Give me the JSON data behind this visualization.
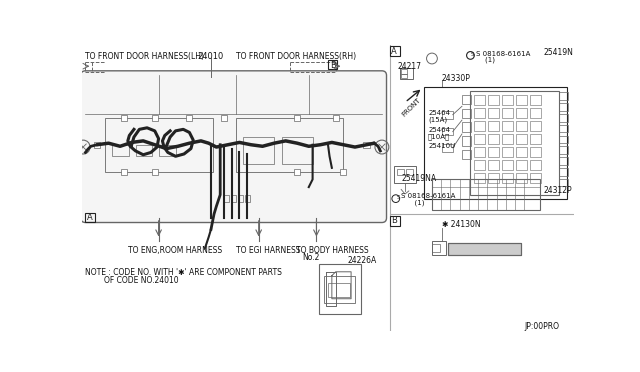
{
  "bg_color": "#ffffff",
  "lc": "#666666",
  "dc": "#222222",
  "fig_width": 6.4,
  "fig_height": 3.72,
  "labels": {
    "front_lh": "TO FRONT DOOR HARNESS(LH)",
    "front_rh": "TO FRONT DOOR HARNESS(RH)",
    "harness_24010": "24010",
    "eng_room": "TO ENG,ROOM HARNESS",
    "egi": "TO EGI HARNESS",
    "body_harness": "TO BODY HARNESS",
    "body_no2": "No.2",
    "note1": "NOTE : CODE NO. WITH '✱' ARE COMPONENT PARTS",
    "note2": "        OF CODE NO.24010",
    "jp": "JP:00PRO",
    "part_24217": "24217",
    "part_24330p": "24330P",
    "part_25464_15a1": "25464",
    "part_25464_15a2": "(15A)",
    "part_25464_10a1": "25464",
    "part_25464_10a2": "【10A】",
    "part_25410u": "25410U",
    "part_25419n": "25419N",
    "part_25419na": "25419NA",
    "part_24312p": "24312P",
    "part_08168_1": "S 08168-6161A",
    "part_08168_1b": "    (1)",
    "part_08168_2": "S 08168-6161A",
    "part_08168_2b": "      (1)",
    "part_24226a": "24226A",
    "part_24130n": "✱ 24130N",
    "front_label": "FRONT",
    "label_A": "A",
    "label_B_top": "B",
    "label_A_right": "A",
    "label_B_right": "B"
  }
}
